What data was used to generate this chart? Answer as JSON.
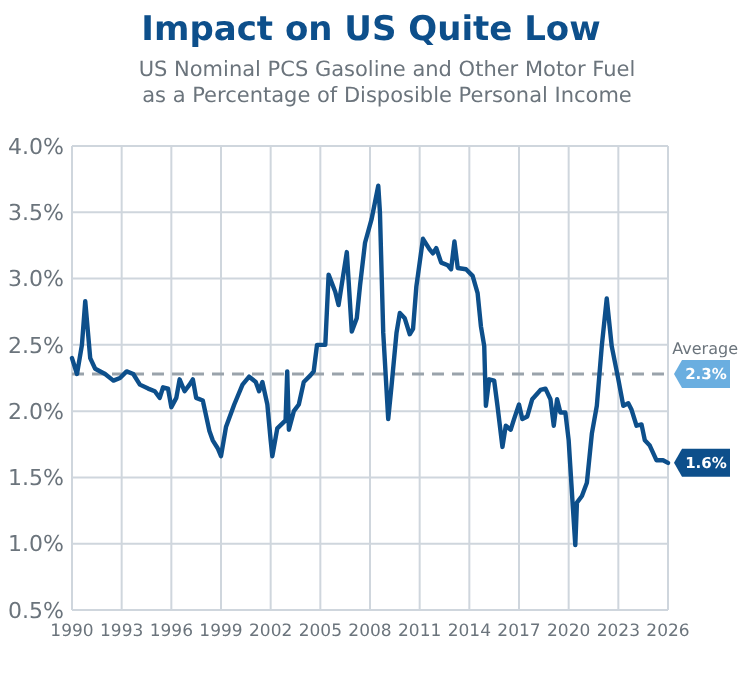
{
  "chart_data": {
    "type": "line",
    "title": "Impact on US Quite Low",
    "subtitle": "US Nominal PCS Gasoline and Other Motor Fuel as a Percentage of Disposible Personal Income",
    "series": [
      {
        "color": "#0d4f8b",
        "x": [
          1990,
          1990.3,
          1990.6,
          1990.8,
          1991.1,
          1991.4,
          1992,
          1992.5,
          1992.9,
          1993.3,
          1993.7,
          1994.1,
          1994.6,
          1995,
          1995.3,
          1995.5,
          1995.8,
          1996,
          1996.3,
          1996.5,
          1996.8,
          1997.1,
          1997.3,
          1997.5,
          1997.9,
          1998.3,
          1998.5,
          1998.8,
          1999,
          1999.3,
          1999.8,
          2000.3,
          2000.7,
          2001.1,
          2001.3,
          2001.5,
          2001.8,
          2002,
          2002.1,
          2002.4,
          2002.9,
          2003,
          2003.1,
          2003.4,
          2003.7,
          2004,
          2004.4,
          2004.6,
          2004.8,
          2005.3,
          2005.5,
          2005.9,
          2006.1,
          2006.6,
          2006.9,
          2007.2,
          2007.4,
          2007.7,
          2008.1,
          2008.5,
          2008.6,
          2008.8,
          2009.1,
          2009.3,
          2009.6,
          2009.8,
          2010.1,
          2010.4,
          2010.6,
          2010.8,
          2011.2,
          2011.6,
          2011.8,
          2012,
          2012.3,
          2012.7,
          2012.9,
          2013.1,
          2013.3,
          2013.8,
          2014.2,
          2014.5,
          2014.7,
          2014.9,
          2015,
          2015.2,
          2015.5,
          2015.7,
          2016,
          2016.2,
          2016.5,
          2016.7,
          2017,
          2017.2,
          2017.5,
          2017.8,
          2018.3,
          2018.6,
          2018.9,
          2019.1,
          2019.3,
          2019.5,
          2019.8,
          2020,
          2020.2,
          2020.4,
          2020.5,
          2020.8,
          2021.1,
          2021.4,
          2021.7,
          2022,
          2022.3,
          2022.6,
          2023,
          2023.3,
          2023.6,
          2023.8,
          2024.1,
          2024.4,
          2024.6,
          2024.9,
          2025.3,
          2025.7,
          2026
        ],
        "values": [
          2.4,
          2.28,
          2.5,
          2.83,
          2.4,
          2.32,
          2.28,
          2.23,
          2.25,
          2.3,
          2.28,
          2.2,
          2.17,
          2.15,
          2.1,
          2.18,
          2.17,
          2.03,
          2.1,
          2.24,
          2.15,
          2.2,
          2.24,
          2.1,
          2.08,
          1.85,
          1.78,
          1.72,
          1.66,
          1.88,
          2.05,
          2.2,
          2.26,
          2.22,
          2.15,
          2.22,
          2.05,
          1.78,
          1.66,
          1.87,
          1.93,
          2.3,
          1.86,
          2.0,
          2.05,
          2.22,
          2.27,
          2.3,
          2.5,
          2.5,
          3.03,
          2.9,
          2.8,
          3.2,
          2.6,
          2.7,
          2.95,
          3.27,
          3.45,
          3.7,
          3.5,
          2.59,
          1.94,
          2.19,
          2.59,
          2.74,
          2.7,
          2.58,
          2.62,
          2.94,
          3.3,
          3.22,
          3.19,
          3.23,
          3.12,
          3.1,
          3.07,
          3.28,
          3.08,
          3.07,
          3.02,
          2.89,
          2.64,
          2.49,
          2.04,
          2.24,
          2.23,
          2.04,
          1.73,
          1.89,
          1.86,
          1.94,
          2.05,
          1.94,
          1.96,
          2.09,
          2.16,
          2.17,
          2.09,
          1.89,
          2.09,
          1.99,
          1.99,
          1.78,
          1.38,
          0.99,
          1.31,
          1.36,
          1.46,
          1.83,
          2.04,
          2.49,
          2.85,
          2.49,
          2.24,
          2.04,
          2.06,
          2.01,
          1.89,
          1.9,
          1.78,
          1.74,
          1.63,
          1.63,
          1.61
        ]
      }
    ],
    "xlim": [
      1990,
      2026
    ],
    "xticks": [
      1990,
      1993,
      1996,
      1999,
      2002,
      2005,
      2008,
      2011,
      2014,
      2017,
      2020,
      2023,
      2026
    ],
    "ylim": [
      0.5,
      4
    ],
    "yticks": [
      {
        "value": 0.5,
        "label": "0.5%"
      },
      {
        "value": 1,
        "label": "1.0%"
      },
      {
        "value": 1.5,
        "label": "1.5%"
      },
      {
        "value": 2,
        "label": "2.0%"
      },
      {
        "value": 2.5,
        "label": "2.5%"
      },
      {
        "value": 3,
        "label": "3.0%"
      },
      {
        "value": 3.5,
        "label": "3.5%"
      },
      {
        "value": 4,
        "label": "4.0%"
      }
    ],
    "grid": true,
    "line_style": "solid",
    "ref_lines": [
      {
        "axis": "y",
        "value": 2.28,
        "label": "Average",
        "color": "#9aa3ab",
        "line_style": "dashed"
      }
    ],
    "annotations": [
      {
        "text": "2.3%",
        "x": 2026,
        "y": 2.28
      },
      {
        "text": "1.6%",
        "x": 2026,
        "y": 1.61
      }
    ]
  }
}
